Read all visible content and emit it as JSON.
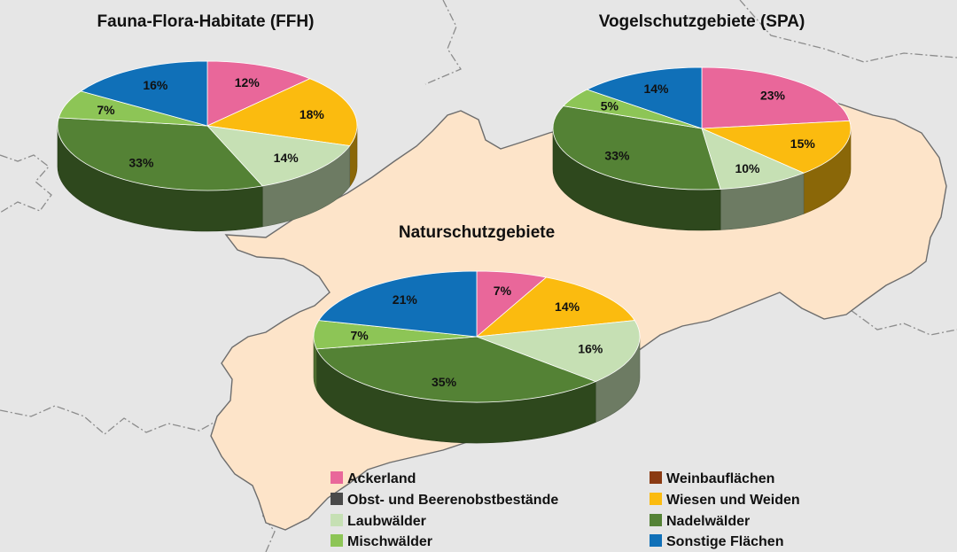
{
  "colors": {
    "map_background": "#e3e3e3",
    "map_neighbor_fill": "#e6e6e6",
    "map_region_fill": "#fde4c9",
    "map_border": "#8c8c8c",
    "map_region_border": "#6d6d6d"
  },
  "legend": {
    "items": [
      {
        "key": "Ackerland",
        "label": "Ackerland",
        "color": "#e9679a"
      },
      {
        "key": "Weinbauflaechen",
        "label": "Weinbauflächen",
        "color": "#8a3a12"
      },
      {
        "key": "Obst",
        "label": "Obst- und Beerenobstbestände",
        "color": "#4a4a4a"
      },
      {
        "key": "Wiesen",
        "label": "Wiesen und Weiden",
        "color": "#fbbb0f"
      },
      {
        "key": "Laubwaelder",
        "label": "Laubwälder",
        "color": "#c6e0b4"
      },
      {
        "key": "Nadelwaelder",
        "label": "Nadelwälder",
        "color": "#548235"
      },
      {
        "key": "Mischwaelder",
        "label": "Mischwälder",
        "color": "#8dc556"
      },
      {
        "key": "Sonstige",
        "label": "Sonstige Flächen",
        "color": "#1070b8"
      }
    ]
  },
  "chart_data": [
    {
      "type": "pie",
      "title": "Fauna-Flora-Habitate (FFH)",
      "slices": [
        {
          "category": "Ackerland",
          "value": 12,
          "label": "12%"
        },
        {
          "category": "Wiesen und Weiden",
          "value": 18,
          "label": "18%"
        },
        {
          "category": "Laubwälder",
          "value": 14,
          "label": "14%"
        },
        {
          "category": "Nadelwälder",
          "value": 33,
          "label": "33%"
        },
        {
          "category": "Mischwälder",
          "value": 7,
          "label": "7%"
        },
        {
          "category": "Sonstige Flächen",
          "value": 16,
          "label": "16%"
        }
      ]
    },
    {
      "type": "pie",
      "title": "Vogelschutzgebiete (SPA)",
      "slices": [
        {
          "category": "Ackerland",
          "value": 23,
          "label": "23%"
        },
        {
          "category": "Wiesen und Weiden",
          "value": 15,
          "label": "15%"
        },
        {
          "category": "Laubwälder",
          "value": 10,
          "label": "10%"
        },
        {
          "category": "Nadelwälder",
          "value": 33,
          "label": "33%"
        },
        {
          "category": "Mischwälder",
          "value": 5,
          "label": "5%"
        },
        {
          "category": "Sonstige Flächen",
          "value": 14,
          "label": "14%"
        }
      ]
    },
    {
      "type": "pie",
      "title": "Naturschutzgebiete",
      "slices": [
        {
          "category": "Ackerland",
          "value": 7,
          "label": "7%"
        },
        {
          "category": "Wiesen und Weiden",
          "value": 14,
          "label": "14%"
        },
        {
          "category": "Laubwälder",
          "value": 16,
          "label": "16%"
        },
        {
          "category": "Nadelwälder",
          "value": 35,
          "label": "35%"
        },
        {
          "category": "Mischwälder",
          "value": 7,
          "label": "7%"
        },
        {
          "category": "Sonstige Flächen",
          "value": 21,
          "label": "21%"
        }
      ]
    }
  ]
}
